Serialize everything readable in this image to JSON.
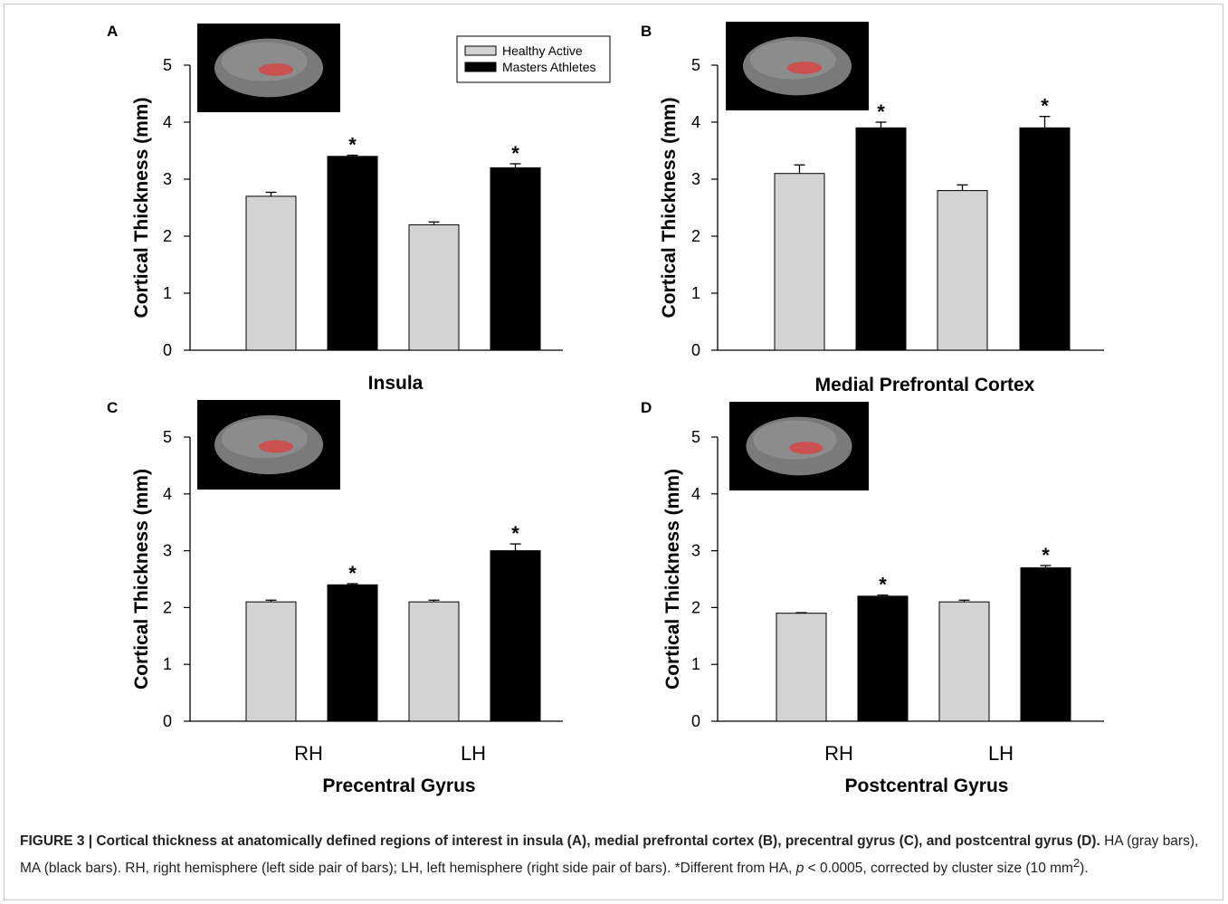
{
  "chart_data": [
    {
      "type": "bar",
      "panel": "A",
      "title": "",
      "xlabel": "Insula",
      "ylabel": "Cortical Thickness (mm)",
      "ylim": [
        0,
        5
      ],
      "yticks": [
        "0",
        "1",
        "2",
        "3",
        "4",
        "5"
      ],
      "categories": [
        "",
        ""
      ],
      "series": [
        {
          "name": "Healthy Active",
          "values": [
            2.7,
            2.2
          ],
          "errors": [
            0.07,
            0.05
          ]
        },
        {
          "name": "Masters Athletes",
          "values": [
            3.4,
            3.2
          ],
          "errors": [
            0.02,
            0.07
          ]
        }
      ],
      "significance": [
        true,
        true
      ],
      "inset_label": "Insula",
      "legend_position": "top-right"
    },
    {
      "type": "bar",
      "panel": "B",
      "title": "",
      "xlabel": "Medial Prefrontal Cortex",
      "ylabel": "Cortical Thickness (mm)",
      "ylim": [
        0,
        5
      ],
      "yticks": [
        "0",
        "1",
        "2",
        "3",
        "4",
        "5"
      ],
      "categories": [
        "",
        ""
      ],
      "series": [
        {
          "name": "Healthy Active",
          "values": [
            3.1,
            2.8
          ],
          "errors": [
            0.15,
            0.1
          ]
        },
        {
          "name": "Masters Athletes",
          "values": [
            3.9,
            3.9
          ],
          "errors": [
            0.1,
            0.2
          ]
        }
      ],
      "significance": [
        true,
        true
      ],
      "inset_label": "mPFC"
    },
    {
      "type": "bar",
      "panel": "C",
      "title": "",
      "xlabel": "Precentral Gyrus",
      "ylabel": "Cortical Thickness (mm)",
      "ylim": [
        0,
        5
      ],
      "yticks": [
        "0",
        "1",
        "2",
        "3",
        "4",
        "5"
      ],
      "categories": [
        "RH",
        "LH"
      ],
      "series": [
        {
          "name": "Healthy Active",
          "values": [
            2.1,
            2.1
          ],
          "errors": [
            0.03,
            0.03
          ]
        },
        {
          "name": "Masters Athletes",
          "values": [
            2.4,
            3.0
          ],
          "errors": [
            0.02,
            0.12
          ]
        }
      ],
      "significance": [
        true,
        true
      ],
      "inset_label": "Precentral"
    },
    {
      "type": "bar",
      "panel": "D",
      "title": "",
      "xlabel": "Postcentral Gyrus",
      "ylabel": "Cortical Thickness (mm)",
      "ylim": [
        0,
        5
      ],
      "yticks": [
        "0",
        "1",
        "2",
        "3",
        "4",
        "5"
      ],
      "categories": [
        "RH",
        "LH"
      ],
      "series": [
        {
          "name": "Healthy Active",
          "values": [
            1.9,
            2.1
          ],
          "errors": [
            0.01,
            0.03
          ]
        },
        {
          "name": "Masters Athletes",
          "values": [
            2.2,
            2.7
          ],
          "errors": [
            0.02,
            0.04
          ]
        }
      ],
      "significance": [
        true,
        true
      ],
      "inset_label": "Postcentral"
    }
  ],
  "legend": {
    "healthy_active": "Healthy Active",
    "masters_athletes": "Masters Athletes"
  },
  "colors": {
    "healthy_active": "#d3d3d3",
    "masters_athletes": "#000000",
    "highlight": "#d64545"
  },
  "caption": {
    "bold": "FIGURE 3 | Cortical thickness at anatomically defined regions of interest in insula (A), medial prefrontal cortex (B), precentral gyrus (C), and postcentral gyrus (D).",
    "text1": " HA (gray bars), MA (black bars). RH, right hemisphere (left side pair of bars); LH, left hemisphere (right side pair of bars). *Different from HA, ",
    "p": "p",
    "text2": " < 0.0005, corrected by cluster size (10 mm",
    "sup": "2",
    "text3": ")."
  }
}
